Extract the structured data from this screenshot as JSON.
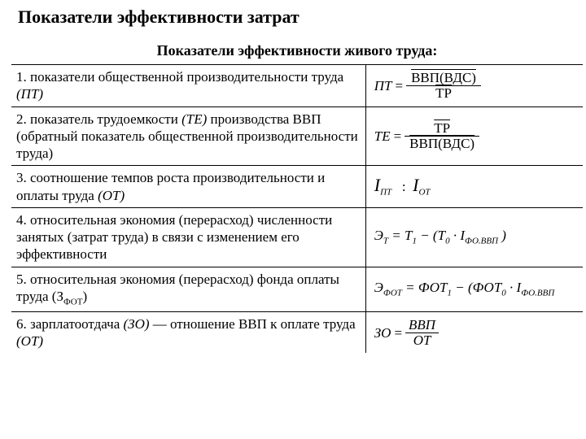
{
  "title": "Показатели эффективности затрат",
  "header": "Показатели эффективности живого труда:",
  "rows": {
    "r1": {
      "desc_a": "1. показатели общественной производительности труда ",
      "desc_b": "(ПТ)",
      "lhs": "ПТ",
      "num": "ВВП(ВДС)",
      "den": "ТР"
    },
    "r2": {
      "desc_a": "2. показатель трудоемкости ",
      "desc_b": "(ТЕ)",
      "desc_c": " производства ВВП (обратный показатель общественной производительности труда)",
      "lhs": "ТЕ",
      "num": "ТР",
      "den": "ВВП(ВДС)"
    },
    "r3": {
      "desc_a": "3. соотношение темпов роста производительности и оплаты труда ",
      "desc_b": "(ОТ)",
      "i1": "I",
      "sub1": "ПТ",
      "colon": ":",
      "i2": "I",
      "sub2": "ОТ"
    },
    "r4": {
      "desc": "4. относительная экономия (перерасход) численности занятых (затрат труда) в связи с изменением его эффективности",
      "lhs": "Э",
      "lhs_sub": "Т",
      "t1": "Т",
      "s1": "1",
      "t0": "Т",
      "s0": "0",
      "idx": "I",
      "idx_sub": "ФО.ВВП"
    },
    "r5": {
      "desc_a": "5. относительная экономия (перерасход) фонда оплаты труда (З",
      "desc_sub": "ФОТ",
      "desc_b": ")",
      "lhs": "Э",
      "lhs_sub": "ФОТ",
      "f1": "ФОТ",
      "s1": "1",
      "f0": "ФОТ",
      "s0": "0",
      "idx": "I",
      "idx_sub": "ФО.ВВП"
    },
    "r6": {
      "desc_a": "6. зарплатоотдача ",
      "desc_b": "(ЗО)",
      "desc_c": " — отношение ВВП к оплате труда ",
      "desc_d": "(ОТ)",
      "lhs": "ЗО",
      "num": "ВВП",
      "den": "ОТ"
    }
  }
}
